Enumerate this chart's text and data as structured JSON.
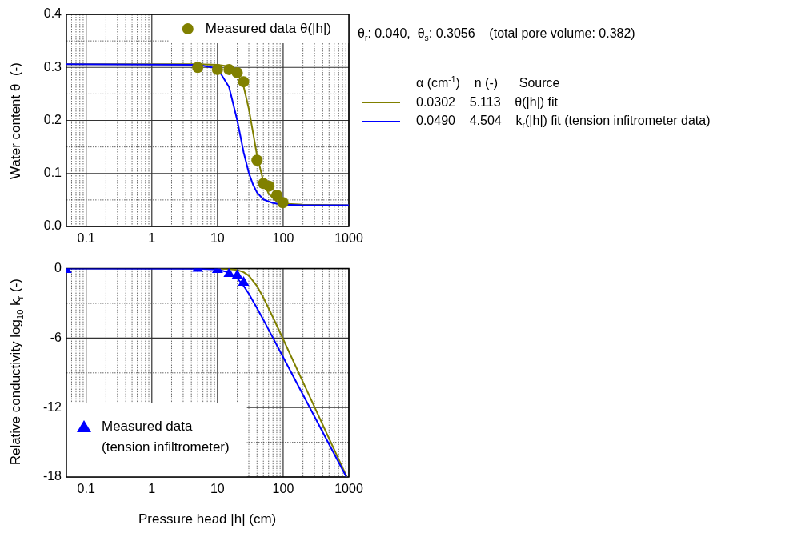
{
  "chart_data": [
    {
      "type": "line",
      "ylabel": "Water content θ  (-)",
      "xlim": [
        0.05,
        1000
      ],
      "ylim": [
        0,
        0.4
      ],
      "log": "x",
      "grid": true,
      "legend": "top right",
      "legend_title": "α (cm$^{-1}$)    n (-)      Source",
      "annotations": [
        "θ$_{r}$: 0.040,  θ$_{s}$: 0.3056    (total pore volume: 0.382)"
      ],
      "xticks": [
        {
          "value": 0.06,
          "label": null
        },
        {
          "value": 0.07,
          "label": null
        },
        {
          "value": 0.08,
          "label": null
        },
        {
          "value": 0.09,
          "label": null
        },
        0.1,
        {
          "value": 0.2,
          "label": null
        },
        {
          "value": 0.3,
          "label": null
        },
        {
          "value": 0.4,
          "label": null
        },
        {
          "value": 0.5,
          "label": null
        },
        {
          "value": 0.6,
          "label": null
        },
        {
          "value": 0.7,
          "label": null
        },
        {
          "value": 0.8,
          "label": null
        },
        {
          "value": 0.9,
          "label": null
        },
        1,
        {
          "value": 2,
          "label": null
        },
        {
          "value": 3,
          "label": null
        },
        {
          "value": 4,
          "label": null
        },
        {
          "value": 5,
          "label": null
        },
        {
          "value": 6,
          "label": null
        },
        {
          "value": 7,
          "label": null
        },
        {
          "value": 8,
          "label": null
        },
        {
          "value": 9,
          "label": null
        },
        10,
        {
          "value": 20,
          "label": null
        },
        {
          "value": 30,
          "label": null
        },
        {
          "value": 40,
          "label": null
        },
        {
          "value": 50,
          "label": null
        },
        {
          "value": 60,
          "label": null
        },
        {
          "value": 70,
          "label": null
        },
        {
          "value": 80,
          "label": null
        },
        {
          "value": 90,
          "label": null
        },
        100,
        {
          "value": 200,
          "label": null
        },
        {
          "value": 300,
          "label": null
        },
        {
          "value": 400,
          "label": null
        },
        {
          "value": 500,
          "label": null
        },
        {
          "value": 600,
          "label": null
        },
        {
          "value": 700,
          "label": null
        },
        {
          "value": 800,
          "label": null
        },
        {
          "value": 900,
          "label": null
        },
        1000
      ],
      "yticks": [
        {
          "value": 0,
          "label": "0.0"
        },
        {
          "value": 0.05,
          "label": null
        },
        {
          "value": 0.1,
          "label": "0.1"
        },
        {
          "value": 0.15,
          "label": null
        },
        {
          "value": 0.2,
          "label": "0.2"
        },
        {
          "value": 0.25,
          "label": null
        },
        {
          "value": 0.3,
          "label": "0.3"
        },
        {
          "value": 0.35,
          "label": null
        },
        {
          "value": 0.4,
          "label": "0.4"
        }
      ],
      "series": [
        {
          "name": "0.0302    5.113    θ(|h|) fit",
          "type": "line",
          "color": "#808000",
          "marker": "none",
          "line_style": "solid",
          "x": [
            0.05,
            5,
            10,
            15,
            20,
            25,
            30,
            35,
            40,
            50,
            60,
            80,
            100,
            200,
            1000
          ],
          "values": [
            0.306,
            0.306,
            0.305,
            0.302,
            0.29,
            0.264,
            0.222,
            0.175,
            0.134,
            0.085,
            0.062,
            0.047,
            0.043,
            0.041,
            0.04
          ]
        },
        {
          "name": "0.0490    4.504    k$_{r}$(|h|) fit (tension infitrometer data)",
          "type": "line",
          "color": "#0000ff",
          "marker": "none",
          "line_style": "solid",
          "x": [
            0.05,
            5,
            10,
            15,
            20,
            25,
            30,
            35,
            40,
            50,
            70,
            100,
            200,
            1000
          ],
          "values": [
            0.306,
            0.305,
            0.298,
            0.263,
            0.2,
            0.14,
            0.101,
            0.078,
            0.064,
            0.051,
            0.044,
            0.041,
            0.04,
            0.04
          ]
        },
        {
          "name": "Measured data θ(|h|)",
          "type": "scatter",
          "color": "#808000",
          "marker": "circle",
          "x": [
            5,
            10,
            15,
            20,
            25,
            40,
            50,
            61,
            80,
            99
          ],
          "values": [
            0.3,
            0.296,
            0.296,
            0.29,
            0.273,
            0.125,
            0.081,
            0.076,
            0.059,
            0.045
          ]
        }
      ]
    },
    {
      "type": "line",
      "xlabel": "Pressure head |h| (cm)",
      "ylabel": "Relative conductivity log$_{10}$ k$_{r}$ (-)",
      "xlim": [
        0.05,
        1000
      ],
      "ylim": [
        -18,
        0
      ],
      "log": "x",
      "grid": true,
      "legend": "bottom left",
      "xticks": [
        {
          "value": 0.06,
          "label": null
        },
        {
          "value": 0.07,
          "label": null
        },
        {
          "value": 0.08,
          "label": null
        },
        {
          "value": 0.09,
          "label": null
        },
        0.1,
        {
          "value": 0.2,
          "label": null
        },
        {
          "value": 0.3,
          "label": null
        },
        {
          "value": 0.4,
          "label": null
        },
        {
          "value": 0.5,
          "label": null
        },
        {
          "value": 0.6,
          "label": null
        },
        {
          "value": 0.7,
          "label": null
        },
        {
          "value": 0.8,
          "label": null
        },
        {
          "value": 0.9,
          "label": null
        },
        1,
        {
          "value": 2,
          "label": null
        },
        {
          "value": 3,
          "label": null
        },
        {
          "value": 4,
          "label": null
        },
        {
          "value": 5,
          "label": null
        },
        {
          "value": 6,
          "label": null
        },
        {
          "value": 7,
          "label": null
        },
        {
          "value": 8,
          "label": null
        },
        {
          "value": 9,
          "label": null
        },
        10,
        {
          "value": 20,
          "label": null
        },
        {
          "value": 30,
          "label": null
        },
        {
          "value": 40,
          "label": null
        },
        {
          "value": 50,
          "label": null
        },
        {
          "value": 60,
          "label": null
        },
        {
          "value": 70,
          "label": null
        },
        {
          "value": 80,
          "label": null
        },
        {
          "value": 90,
          "label": null
        },
        100,
        {
          "value": 200,
          "label": null
        },
        {
          "value": 300,
          "label": null
        },
        {
          "value": 400,
          "label": null
        },
        {
          "value": 500,
          "label": null
        },
        {
          "value": 600,
          "label": null
        },
        {
          "value": 700,
          "label": null
        },
        {
          "value": 800,
          "label": null
        },
        {
          "value": 900,
          "label": null
        },
        1000
      ],
      "yticks": [
        -18,
        {
          "value": -15,
          "label": null
        },
        -12,
        {
          "value": -9,
          "label": null
        },
        -6,
        {
          "value": -3,
          "label": null
        },
        0
      ],
      "series": [
        {
          "type": "line",
          "color": "#808000",
          "marker": "none",
          "line_style": "solid",
          "x": [
            10,
            15,
            20,
            25,
            30,
            40,
            50,
            70,
            100,
            200,
            500,
            933
          ],
          "values": [
            0,
            -0.04,
            -0.12,
            -0.31,
            -0.61,
            -1.51,
            -2.5,
            -4.21,
            -6.09,
            -9.78,
            -14.67,
            -18
          ]
        },
        {
          "type": "line",
          "color": "#0000ff",
          "marker": "none",
          "line_style": "solid",
          "x": [
            0.05,
            5,
            10,
            15,
            20,
            25,
            30,
            40,
            50,
            70,
            100,
            200,
            500,
            918
          ],
          "values": [
            0,
            -0.01,
            -0.08,
            -0.33,
            -0.83,
            -1.49,
            -2.17,
            -3.41,
            -4.42,
            -5.98,
            -7.65,
            -10.88,
            -15.17,
            -18
          ]
        },
        {
          "name": "Measured data\n(tension infiltrometer)",
          "type": "scatter",
          "color": "#0000ff",
          "marker": "triangle",
          "x": [
            0.05,
            5,
            10,
            15,
            20,
            25
          ],
          "values": [
            -0.1,
            0,
            -0.1,
            -0.45,
            -0.6,
            -1.2
          ]
        }
      ]
    }
  ]
}
